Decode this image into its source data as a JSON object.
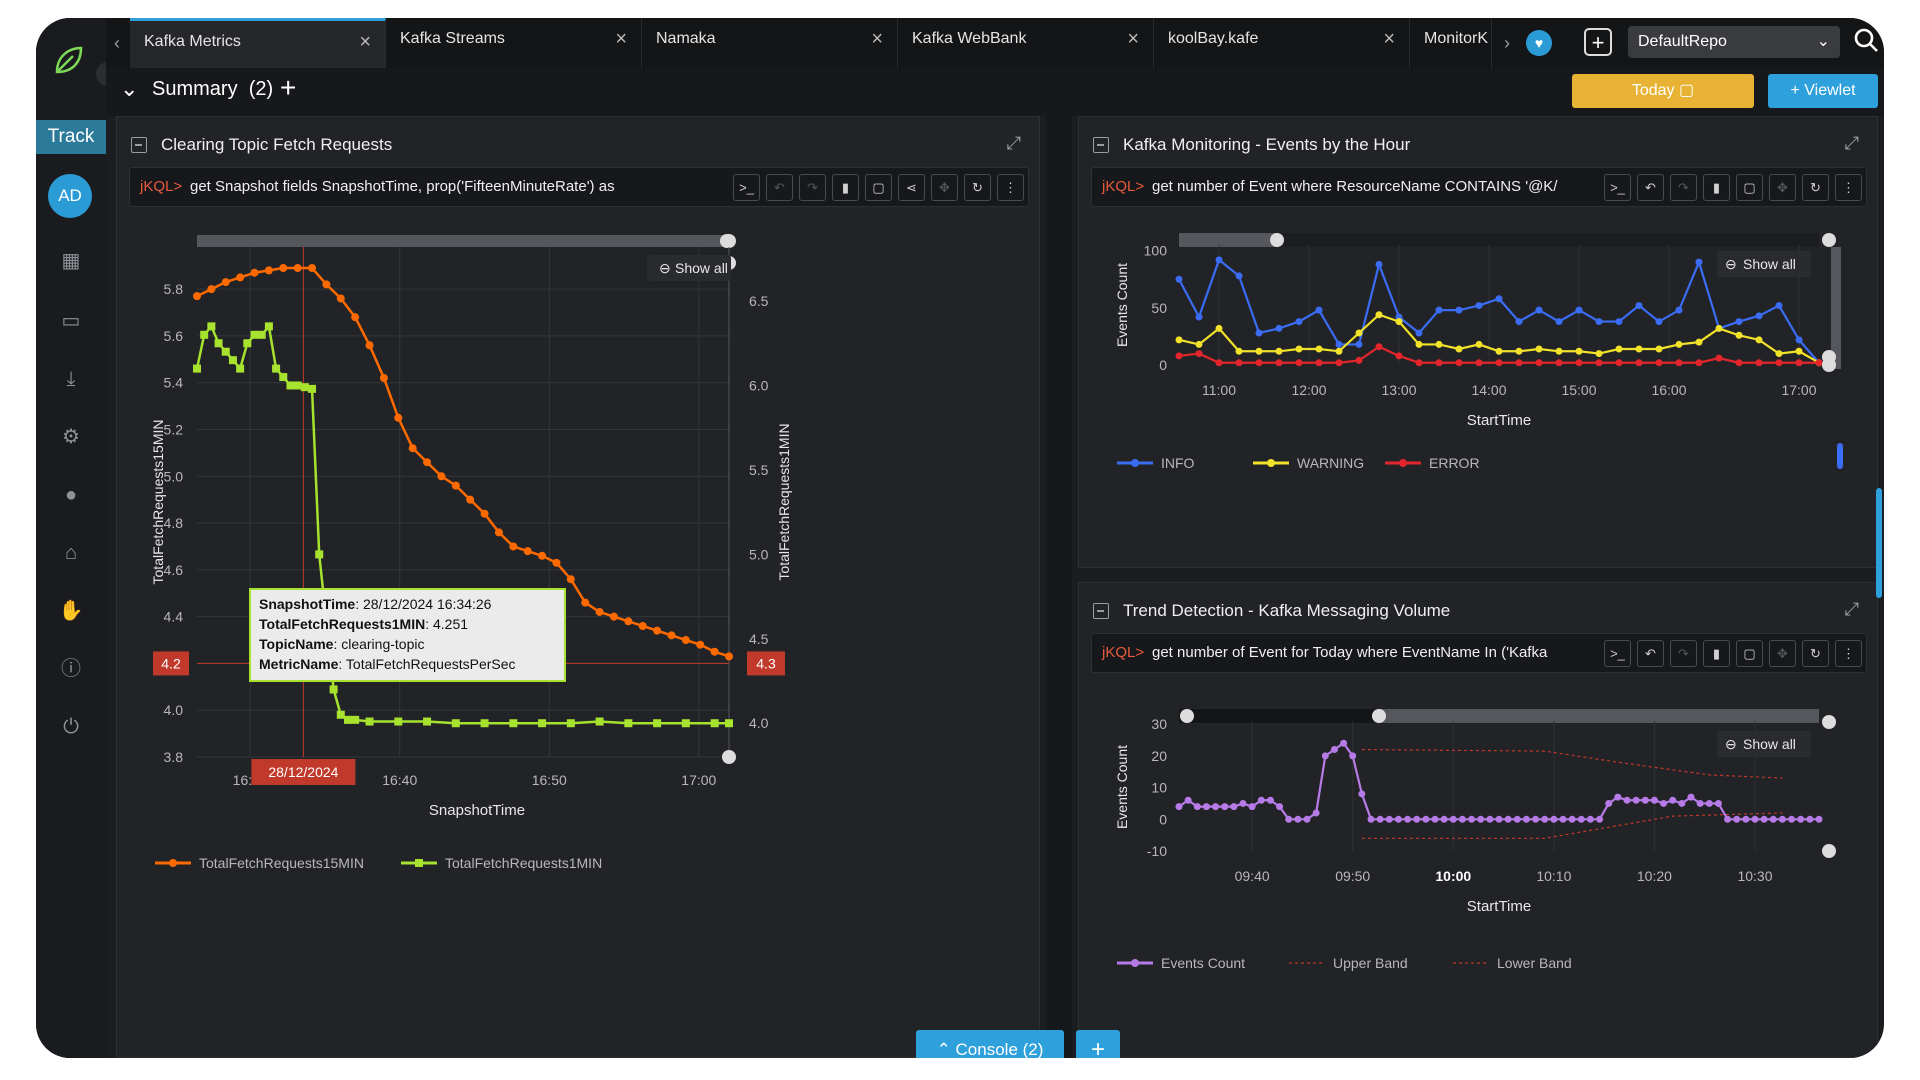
{
  "nav": {
    "track_label": "Track",
    "avatar_initials": "AD",
    "icons": [
      "grid-icon",
      "monitor-icon",
      "download-icon",
      "gear-icon",
      "user-icon",
      "home-icon",
      "thumbs-up-icon",
      "alert-icon",
      "power-icon"
    ]
  },
  "tabs": [
    {
      "label": "Kafka Metrics",
      "active": true
    },
    {
      "label": "Kafka Streams",
      "active": false
    },
    {
      "label": "Namaka",
      "active": false
    },
    {
      "label": "Kafka WebBank",
      "active": false
    },
    {
      "label": "koolBay.kafe",
      "active": false
    },
    {
      "label": "MonitorK",
      "active": false
    }
  ],
  "repo": {
    "selected": "DefaultRepo"
  },
  "summary": {
    "label": "Summary",
    "count": "(2)"
  },
  "toolbar": {
    "today_label": "Today",
    "viewlet_label": "Viewlet"
  },
  "console": {
    "label": "Console",
    "count": "(2)"
  },
  "colors": {
    "accent": "#2ea0db",
    "today": "#e8b234",
    "orange": "#ff6a00",
    "lime": "#a6e22e",
    "info": "#3a6cf4",
    "warning": "#f2e22a",
    "error": "#e3262b",
    "events": "#b77be8",
    "band": "#c0392b"
  },
  "panels": {
    "left": {
      "title": "Clearing Topic Fetch Requests",
      "query_prefix": "jKQL>",
      "query": "get Snapshot fields SnapshotTime, prop('FifteenMinuteRate') as",
      "show_all": "Show all",
      "crosshair_left": "4.2",
      "crosshair_right": "4.3",
      "crosshair_x": "28/12/2024",
      "tooltip": {
        "k1": "SnapshotTime",
        "v1": "28/12/2024 16:34:26",
        "k2": "TotalFetchRequests1MIN",
        "v2": "4.251",
        "k3": "TopicName",
        "v3": "clearing-topic",
        "k4": "MetricName",
        "v4": "TotalFetchRequestsPerSec"
      }
    },
    "right_top": {
      "title": "Kafka Monitoring - Events by the Hour",
      "query_prefix": "jKQL>",
      "query": "get number of Event where ResourceName CONTAINS '@K/",
      "show_all": "Show all"
    },
    "right_bottom": {
      "title": "Trend Detection - Kafka Messaging Volume",
      "query_prefix": "jKQL>",
      "query": "get number of Event for Today where EventName In ('Kafka",
      "show_all": "Show all"
    }
  },
  "chart_data": [
    {
      "type": "line",
      "xlabel": "SnapshotTime",
      "ylabel": "TotalFetchRequests15MIN",
      "y2label": "TotalFetchRequests1MIN",
      "xticks": [
        "16:30",
        "16:40",
        "16:50",
        "17:00"
      ],
      "yticks": [
        "3.8",
        "4.0",
        "4.2",
        "4.4",
        "4.6",
        "4.8",
        "5.0",
        "5.2",
        "5.4",
        "5.6",
        "5.8"
      ],
      "y2ticks": [
        "4.0",
        "4.5",
        "5.0",
        "5.5",
        "6.0",
        "6.5"
      ],
      "ylim": [
        3.8,
        5.98
      ],
      "y2lim": [
        3.8,
        6.82
      ],
      "series": [
        {
          "name": "TotalFetchRequests15MIN",
          "axis": "left",
          "x": [
            0,
            1,
            2,
            3,
            4,
            5,
            6,
            7,
            8,
            9,
            10,
            11,
            12,
            13,
            14,
            15,
            16,
            17,
            18,
            19,
            20,
            21,
            22,
            23,
            24,
            25,
            26,
            27,
            28,
            29,
            30,
            31,
            32,
            33,
            34,
            35,
            36,
            37
          ],
          "values": [
            5.77,
            5.8,
            5.83,
            5.85,
            5.87,
            5.88,
            5.89,
            5.89,
            5.89,
            5.82,
            5.76,
            5.68,
            5.56,
            5.42,
            5.25,
            5.12,
            5.06,
            5.0,
            4.96,
            4.9,
            4.84,
            4.76,
            4.7,
            4.68,
            4.66,
            4.63,
            4.56,
            4.46,
            4.42,
            4.4,
            4.38,
            4.36,
            4.34,
            4.32,
            4.3,
            4.28,
            4.25,
            4.23
          ]
        },
        {
          "name": "TotalFetchRequests1MIN",
          "axis": "right",
          "x": [
            0,
            0.5,
            1,
            1.5,
            2,
            2.5,
            3,
            3.5,
            4,
            4.5,
            5,
            5.5,
            6,
            6.5,
            7,
            7.5,
            8,
            8.5,
            9,
            9.5,
            10,
            10.5,
            11,
            12,
            14,
            16,
            18,
            20,
            22,
            24,
            26,
            28,
            30,
            32,
            34,
            36,
            37
          ],
          "values": [
            6.1,
            6.3,
            6.35,
            6.25,
            6.2,
            6.15,
            6.1,
            6.25,
            6.3,
            6.3,
            6.35,
            6.1,
            6.05,
            6.0,
            6.0,
            5.99,
            5.98,
            5.0,
            4.6,
            4.2,
            4.05,
            4.02,
            4.02,
            4.01,
            4.01,
            4.01,
            4.0,
            4.0,
            4.0,
            4.0,
            4.0,
            4.01,
            4.0,
            4.0,
            4.0,
            4.0,
            4.0
          ]
        }
      ]
    },
    {
      "type": "line",
      "xlabel": "StartTime",
      "ylabel": "Events Count",
      "xticks": [
        "11:00",
        "12:00",
        "13:00",
        "14:00",
        "15:00",
        "16:00",
        "17:00"
      ],
      "yticks": [
        "0",
        "50",
        "100"
      ],
      "ylim": [
        0,
        105
      ],
      "legend": [
        "INFO",
        "WARNING",
        "ERROR"
      ],
      "series": [
        {
          "name": "INFO",
          "values": [
            75,
            42,
            92,
            78,
            28,
            32,
            38,
            48,
            18,
            18,
            88,
            42,
            28,
            48,
            48,
            52,
            58,
            38,
            48,
            38,
            48,
            38,
            38,
            52,
            38,
            48,
            90,
            32,
            38,
            43,
            52,
            22,
            2
          ]
        },
        {
          "name": "WARNING",
          "values": [
            22,
            18,
            32,
            12,
            12,
            12,
            14,
            14,
            12,
            28,
            44,
            38,
            18,
            18,
            14,
            18,
            12,
            12,
            14,
            12,
            12,
            10,
            14,
            14,
            14,
            18,
            20,
            32,
            26,
            22,
            10,
            12,
            2
          ]
        },
        {
          "name": "ERROR",
          "values": [
            8,
            10,
            2,
            2,
            2,
            2,
            2,
            2,
            2,
            4,
            16,
            8,
            2,
            2,
            2,
            2,
            2,
            2,
            2,
            2,
            2,
            2,
            2,
            2,
            2,
            2,
            2,
            6,
            2,
            2,
            2,
            2,
            2
          ]
        }
      ]
    },
    {
      "type": "line",
      "xlabel": "StartTime",
      "ylabel": "Events Count",
      "xticks": [
        "09:40",
        "09:50",
        "10:00",
        "10:10",
        "10:20",
        "10:30"
      ],
      "yticks": [
        "-10",
        "0",
        "10",
        "20",
        "30"
      ],
      "ylim": [
        -10,
        31
      ],
      "legend": [
        "Events Count",
        "Upper Band",
        "Lower Band"
      ],
      "series": [
        {
          "name": "Events Count",
          "values": [
            4,
            6,
            4,
            4,
            4,
            4,
            4,
            5,
            4,
            6,
            6,
            4,
            0,
            0,
            0,
            2,
            20,
            22,
            24,
            20,
            8,
            0,
            0,
            0,
            0,
            0,
            0,
            0,
            0,
            0,
            0,
            0,
            0,
            0,
            0,
            0,
            0,
            0,
            0,
            0,
            0,
            0,
            0,
            0,
            0,
            0,
            0,
            5,
            7,
            6,
            6,
            6,
            6,
            5,
            6,
            5,
            7,
            5,
            5,
            5,
            0,
            0,
            0,
            0,
            0,
            0,
            0,
            0,
            0,
            0,
            0
          ]
        }
      ]
    }
  ]
}
